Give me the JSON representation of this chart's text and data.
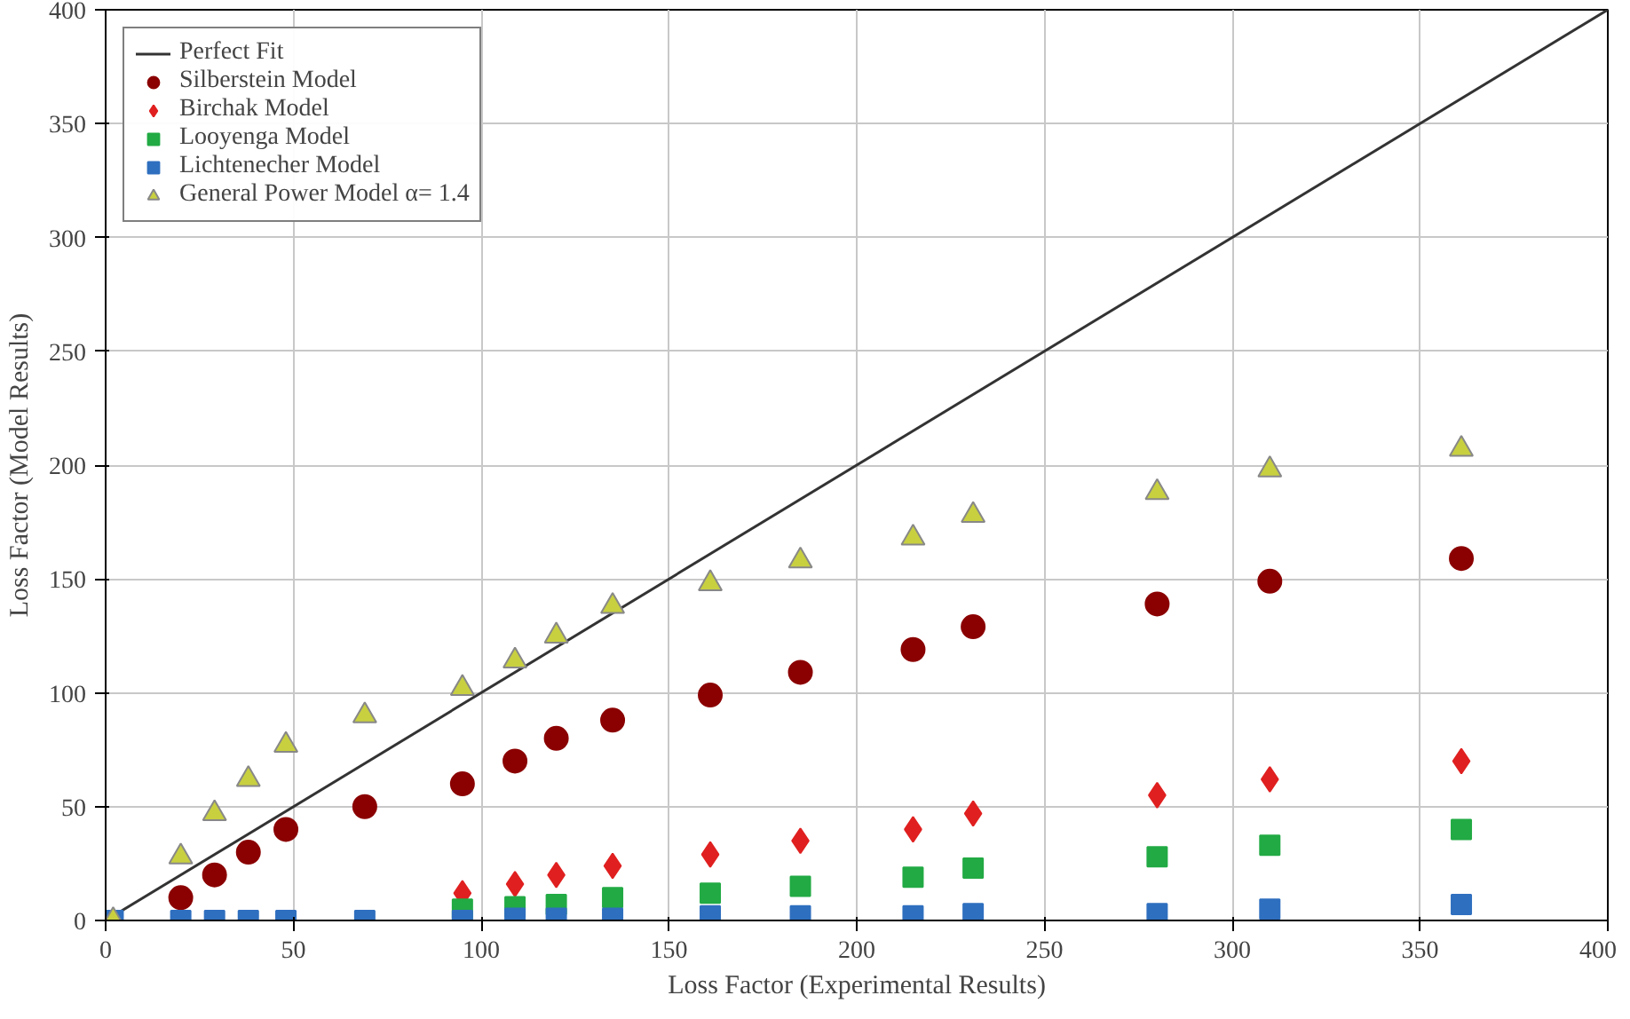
{
  "chart_data": {
    "type": "scatter",
    "xlabel": "Loss Factor (Experimental Results)",
    "ylabel": "Loss Factor (Model Results)",
    "x": [
      2,
      20,
      29,
      38,
      48,
      69,
      95,
      109,
      120,
      135,
      161,
      185,
      215,
      231,
      280,
      310,
      361
    ],
    "xlim": [
      0,
      400
    ],
    "ylim": [
      0,
      400
    ],
    "xticks": [
      0,
      50,
      100,
      150,
      200,
      250,
      300,
      350,
      400
    ],
    "yticks": [
      0,
      50,
      100,
      150,
      200,
      250,
      300,
      350,
      400
    ],
    "grid": true,
    "legend": "top left",
    "series": [
      {
        "name": "Perfect Fit",
        "type": "line",
        "color": "#333333",
        "x": [
          0,
          400
        ],
        "values": [
          0,
          400
        ],
        "marker": "none",
        "line_style": "solid"
      },
      {
        "name": "Silberstein Model",
        "color": "#8b0000",
        "marker": "circle",
        "values": [
          null,
          10,
          20,
          30,
          40,
          50,
          60,
          70,
          80,
          88,
          99,
          109,
          119,
          129,
          139,
          149,
          159
        ]
      },
      {
        "name": "Birchak Model",
        "color": "#e02020",
        "marker": "diamond",
        "values": [
          null,
          null,
          null,
          null,
          null,
          null,
          12,
          16,
          20,
          24,
          29,
          35,
          40,
          47,
          55,
          62,
          70
        ]
      },
      {
        "name": "Looyenga Model",
        "color": "#22aa44",
        "marker": "square",
        "values": [
          null,
          null,
          null,
          null,
          null,
          null,
          5,
          6,
          7,
          10,
          12,
          15,
          19,
          23,
          28,
          33,
          40
        ]
      },
      {
        "name": "Lichtenecher Model",
        "color": "#2f6fbf",
        "marker": "square",
        "values": [
          0,
          0,
          0,
          0,
          0,
          0,
          0,
          1,
          1,
          1,
          2,
          2,
          2,
          3,
          3,
          5,
          7
        ]
      },
      {
        "name": "General Power Model α= 1.4",
        "color": "#c8d040",
        "marker": "triangle",
        "values": [
          0,
          28,
          47,
          62,
          77,
          90,
          102,
          114,
          125,
          138,
          148,
          158,
          168,
          178,
          188,
          198,
          207
        ]
      }
    ]
  }
}
